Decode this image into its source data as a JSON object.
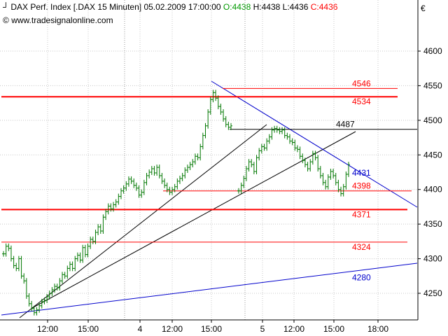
{
  "header": {
    "icon": "candlestick-chart-icon",
    "instrument": "DAX Perf. Index [.DAX  15 Minuten]",
    "datetime": "05.02.2009 17:00:00",
    "open": "O:4438",
    "high": "H:4438",
    "low": "L:4436",
    "close": "C:4436",
    "close_color": "#ff0000",
    "open_color": "#009900",
    "source_prefix": "©",
    "source": "www.tradesignalonline.com"
  },
  "currency_symbol": "€",
  "colors": {
    "candle": "#007700",
    "support_resistance": "#ff0000",
    "trend_black": "#000000",
    "trend_blue": "#0000cc"
  },
  "chart_data": {
    "type": "bar",
    "title": "DAX Perf. Index [.DAX  15 Minuten]",
    "interval": "15 Minuten",
    "ylim": [
      4210,
      4620
    ],
    "y_ticks": [
      4250,
      4300,
      4350,
      4400,
      4450,
      4500,
      4550,
      4600
    ],
    "x_ticks": [
      "12:00",
      "15:00",
      "4",
      "12:00",
      "15:00",
      "5",
      "12:00",
      "15:00",
      "18:00"
    ],
    "grid": true,
    "price_bars": [
      4307,
      4318,
      4315,
      4300,
      4290,
      4286,
      4300,
      4275,
      4268,
      4246,
      4235,
      4228,
      4222,
      4226,
      4232,
      4238,
      4240,
      4245,
      4250,
      4255,
      4260,
      4258,
      4268,
      4277,
      4275,
      4286,
      4292,
      4286,
      4300,
      4305,
      4298,
      4316,
      4306,
      4318,
      4328,
      4325,
      4338,
      4346,
      4340,
      4360,
      4368,
      4376,
      4372,
      4378,
      4382,
      4390,
      4398,
      4402,
      4408,
      4415,
      4412,
      4406,
      4402,
      4392,
      4396,
      4410,
      4420,
      4425,
      4430,
      4424,
      4432,
      4420,
      4412,
      4406,
      4400,
      4396,
      4400,
      4404,
      4412,
      4416,
      4420,
      4428,
      4432,
      4436,
      4440,
      4448,
      4446,
      4462,
      4478,
      4492,
      4512,
      4530,
      4540,
      4532,
      4520,
      4512,
      4502,
      4494,
      4490,
      4492,
      null,
      null,
      4398,
      4406,
      4416,
      4430,
      4440,
      4436,
      4426,
      4446,
      4456,
      4462,
      4460,
      4470,
      4476,
      4486,
      4488,
      4486,
      4484,
      4486,
      4478,
      4476,
      4470,
      4468,
      4460,
      4458,
      4448,
      4442,
      4436,
      4430,
      4440,
      4452,
      4446,
      4430,
      4420,
      4410,
      4404,
      4418,
      4426,
      4420,
      4410,
      4400,
      4394,
      4404,
      4422,
      4436
    ],
    "levels": [
      {
        "label": "4546",
        "value": 4546,
        "color": "#ff0000",
        "weight": "thin"
      },
      {
        "label": "4534",
        "value": 4534,
        "color": "#ff0000",
        "weight": "thick"
      },
      {
        "label": "4487",
        "value": 4487,
        "color": "#000000",
        "weight": "thin"
      },
      {
        "label": "4431",
        "value": 4431,
        "color": "#0000cc",
        "weight": "none"
      },
      {
        "label": "4398",
        "value": 4398,
        "color": "#ff0000",
        "weight": "thin"
      },
      {
        "label": "4371",
        "value": 4371,
        "color": "#ff0000",
        "weight": "thick"
      },
      {
        "label": "4324",
        "value": 4324,
        "color": "#ff0000",
        "weight": "thin"
      },
      {
        "label": "4280",
        "value": 4280,
        "color": "#0000cc",
        "weight": "none"
      }
    ]
  }
}
